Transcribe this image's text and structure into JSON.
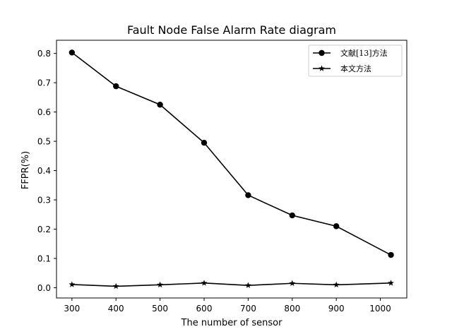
{
  "chart_data": {
    "type": "line",
    "title": "Fault Node False Alarm Rate diagram",
    "xlabel": "The number of sensor",
    "ylabel": "FFPR(%)",
    "x": [
      300,
      400,
      500,
      600,
      700,
      800,
      900,
      1024
    ],
    "xticks": [
      300,
      400,
      500,
      600,
      700,
      800,
      900,
      1000
    ],
    "xlim": [
      265,
      1060
    ],
    "yticks": [
      0.0,
      0.1,
      0.2,
      0.3,
      0.4,
      0.5,
      0.6,
      0.7,
      0.8
    ],
    "ylim": [
      -0.035,
      0.845
    ],
    "grid": false,
    "legend_position": "upper-right",
    "series": [
      {
        "name": "文献[13]方法",
        "marker": "circle",
        "color": "#000000",
        "values": [
          0.803,
          0.688,
          0.625,
          0.495,
          0.316,
          0.247,
          0.21,
          0.112
        ]
      },
      {
        "name": "本文方法",
        "marker": "star",
        "color": "#000000",
        "values": [
          0.011,
          0.005,
          0.01,
          0.016,
          0.008,
          0.015,
          0.01,
          0.016
        ]
      }
    ]
  }
}
